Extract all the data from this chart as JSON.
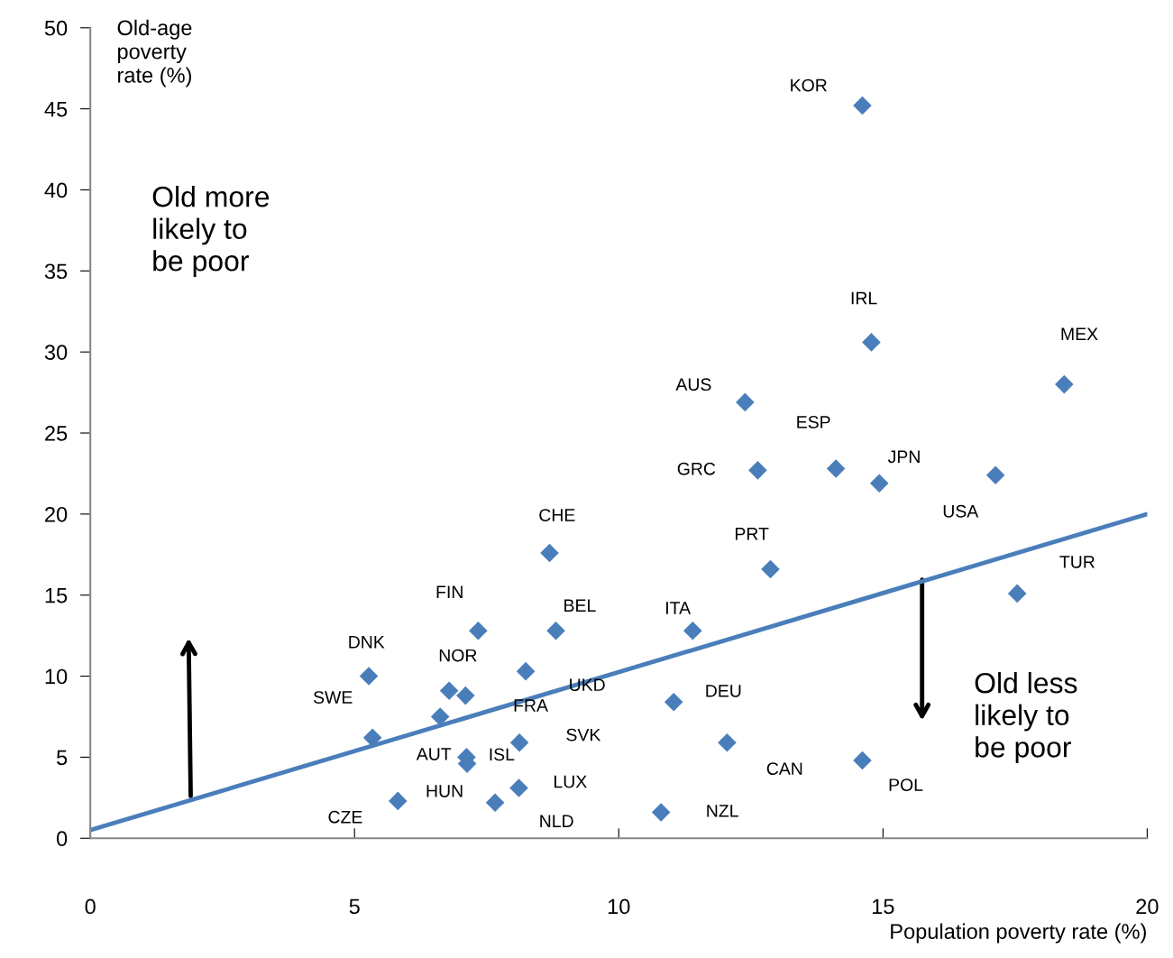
{
  "chart_data": {
    "type": "scatter",
    "xlabel": "Population poverty rate (%)",
    "ylabel": "Old-age poverty rate (%)",
    "xlim": [
      0,
      20
    ],
    "xticks": [
      0,
      5,
      10,
      15,
      20
    ],
    "ylim": [
      0,
      50
    ],
    "yticks": [
      0,
      5,
      10,
      15,
      20,
      25,
      30,
      35,
      40,
      45,
      50
    ],
    "grid": false,
    "legend": false,
    "series": [
      {
        "marker": "diamond",
        "color": "#4a7ebb",
        "x": [
          14.61,
          14.78,
          18.43,
          12.39,
          12.63,
          14.11,
          14.93,
          17.13,
          8.69,
          12.87,
          17.54,
          7.34,
          8.81,
          11.4,
          5.27,
          8.24,
          6.79,
          7.1,
          11.04,
          6.62,
          5.34,
          8.12,
          12.05,
          7.12,
          7.13,
          14.61,
          8.11,
          5.82,
          7.66,
          10.8
        ],
        "values": [
          45.2,
          30.6,
          28.0,
          26.9,
          22.7,
          22.8,
          21.9,
          22.4,
          17.6,
          16.6,
          15.1,
          12.8,
          12.8,
          12.8,
          10.0,
          10.3,
          9.1,
          8.8,
          8.4,
          7.5,
          6.2,
          5.9,
          5.9,
          5.0,
          4.6,
          4.8,
          3.1,
          2.3,
          2.2,
          1.6
        ]
      },
      {
        "type": "line",
        "marker": "none",
        "color": "#4a7ebb",
        "x": [
          0,
          20
        ],
        "values": [
          0.5,
          20
        ]
      }
    ],
    "annotations": [
      {
        "text": "KOR",
        "x": 14.61,
        "y": 45.2
      },
      {
        "text": "IRL",
        "x": 14.78,
        "y": 30.6
      },
      {
        "text": "MEX",
        "x": 18.43,
        "y": 28.0
      },
      {
        "text": "AUS",
        "x": 12.39,
        "y": 26.9
      },
      {
        "text": "GRC",
        "x": 12.63,
        "y": 22.7
      },
      {
        "text": "ESP",
        "x": 14.11,
        "y": 22.8
      },
      {
        "text": "JPN",
        "x": 14.93,
        "y": 21.9
      },
      {
        "text": "USA",
        "x": 17.13,
        "y": 22.4
      },
      {
        "text": "CHE",
        "x": 8.69,
        "y": 17.6
      },
      {
        "text": "PRT",
        "x": 12.87,
        "y": 16.6
      },
      {
        "text": "TUR",
        "x": 17.54,
        "y": 15.1
      },
      "FIN",
      {
        "text": "BEL",
        "x": 8.81,
        "y": 12.8
      },
      {
        "text": "ITA",
        "x": 11.4,
        "y": 12.8
      },
      {
        "text": "DNK",
        "x": 5.27,
        "y": 10.0
      },
      {
        "text": "UKD",
        "x": 8.24,
        "y": 10.3
      },
      {
        "text": "NOR",
        "x": 6.79,
        "y": 9.1
      },
      {
        "text": "FRA",
        "x": 7.1,
        "y": 8.8
      },
      "DEU",
      {
        "text": "AUT",
        "x": 6.62,
        "y": 7.5
      },
      "SWE",
      {
        "text": "SVK",
        "x": 8.12,
        "y": 5.9
      },
      "CAN",
      {
        "text": "ISL",
        "x": 7.12,
        "y": 5.0
      },
      {
        "text": "HUN",
        "x": 7.13,
        "y": 4.6
      },
      "POL",
      "LUX",
      {
        "text": "CZE",
        "x": 5.82,
        "y": 2.3
      },
      {
        "text": "NLD",
        "x": 7.66,
        "y": 2.2
      },
      "NZL",
      "Old more likely to be poor",
      "Old less likely to be poor"
    ]
  }
}
